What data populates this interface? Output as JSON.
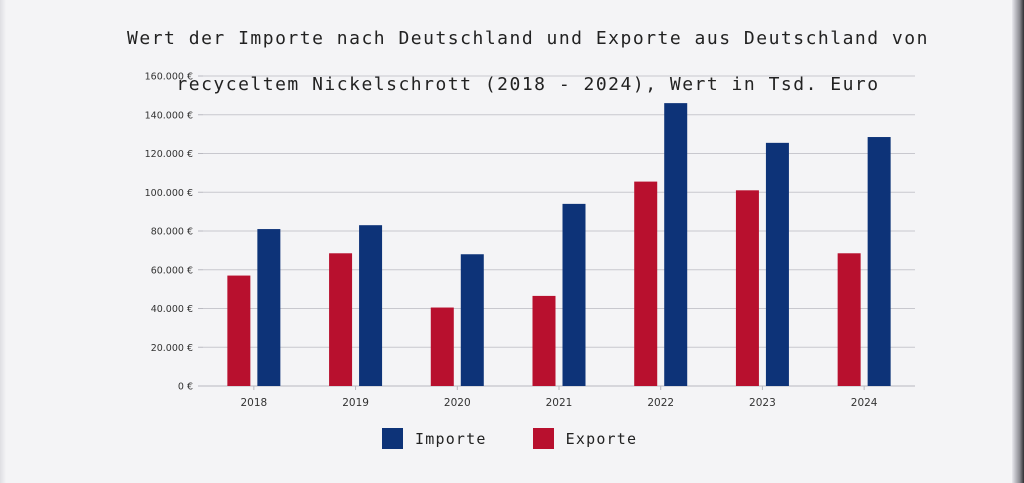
{
  "chart_data": {
    "type": "bar",
    "title": "Wert der Importe nach Deutschland und Exporte aus Deutschland von recyceltem Nickelschrott (2018 - 2024), Wert in Tsd. Euro",
    "title_lines": [
      "Wert der Importe nach Deutschland und Exporte aus Deutschland von",
      "recyceltem Nickelschrott (2018 - 2024), Wert in Tsd. Euro"
    ],
    "categories": [
      "2018",
      "2019",
      "2020",
      "2021",
      "2022",
      "2023",
      "2024"
    ],
    "series": [
      {
        "name": "Exporte",
        "color": "#b8102e",
        "values": [
          57000,
          68500,
          40500,
          46500,
          105500,
          101000,
          68500
        ]
      },
      {
        "name": "Importe",
        "color": "#0d3378",
        "values": [
          81000,
          83000,
          68000,
          94000,
          146000,
          125500,
          128500
        ]
      }
    ],
    "ylim": [
      0,
      160000
    ],
    "yticks": [
      0,
      20000,
      40000,
      60000,
      80000,
      100000,
      120000,
      140000,
      160000
    ],
    "ytick_labels": [
      "0 €",
      "20.000 €",
      "40.000 €",
      "60.000 €",
      "80.000 €",
      "100.000 €",
      "120.000 €",
      "140.000 €",
      "160.000 €"
    ],
    "grid": true,
    "legend_position": "bottom",
    "legend_order": [
      "Importe",
      "Exporte"
    ]
  }
}
